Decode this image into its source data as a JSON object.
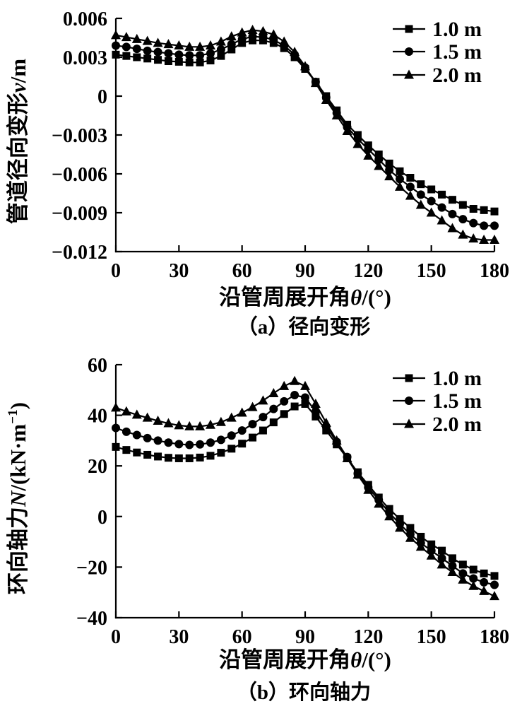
{
  "page": {
    "background": "#ffffff"
  },
  "colors": {
    "stroke": "#000000",
    "text": "#000000",
    "marker_fill": "#000000"
  },
  "chart_data": [
    {
      "type": "line",
      "panel": "a",
      "caption": "（a）径向变形",
      "xlabel_text": "沿管周展开角θ/(°)",
      "ylabel_text": "管道径向变形v/m",
      "xlabel_parts": [
        {
          "t": "沿管周展开角"
        },
        {
          "t": "θ",
          "i": true
        },
        {
          "t": "/(°)"
        }
      ],
      "ylabel_parts": [
        {
          "t": "管道径向变形"
        },
        {
          "t": "v",
          "i": true
        },
        {
          "t": "/m"
        }
      ],
      "xlim": [
        0,
        180
      ],
      "ylim": [
        -0.012,
        0.006
      ],
      "grid": false,
      "legend_position": "top-right",
      "xticks": [
        {
          "label": "0",
          "v": 0
        },
        {
          "label": "30",
          "v": 30
        },
        {
          "label": "60",
          "v": 60
        },
        {
          "label": "90",
          "v": 90
        },
        {
          "label": "120",
          "v": 120
        },
        {
          "label": "150",
          "v": 150
        },
        {
          "label": "180",
          "v": 180
        }
      ],
      "yticks": [
        {
          "label": "0.006",
          "v": 0.006
        },
        {
          "label": "0.003",
          "v": 0.003
        },
        {
          "label": "0",
          "v": 0
        },
        {
          "label": "−0.003",
          "v": -0.003
        },
        {
          "label": "−0.006",
          "v": -0.006
        },
        {
          "label": "−0.009",
          "v": -0.009
        },
        {
          "label": "−0.012",
          "v": -0.012
        }
      ],
      "x": [
        0,
        5,
        10,
        15,
        20,
        25,
        30,
        35,
        40,
        45,
        50,
        55,
        60,
        65,
        70,
        75,
        80,
        85,
        90,
        95,
        100,
        105,
        110,
        115,
        120,
        125,
        130,
        135,
        140,
        145,
        150,
        155,
        160,
        165,
        170,
        175,
        180
      ],
      "series": [
        {
          "name": "1.0 m",
          "marker": "square",
          "values": [
            0.0032,
            0.0031,
            0.003,
            0.0029,
            0.0028,
            0.0027,
            0.00265,
            0.0026,
            0.0026,
            0.00275,
            0.0031,
            0.0036,
            0.0041,
            0.0043,
            0.0043,
            0.0041,
            0.0037,
            0.003,
            0.0021,
            0.0011,
            0.0,
            -0.0011,
            -0.0022,
            -0.003,
            -0.0038,
            -0.0045,
            -0.0052,
            -0.0058,
            -0.0063,
            -0.0068,
            -0.0072,
            -0.0076,
            -0.008,
            -0.0084,
            -0.0087,
            -0.0088,
            -0.0089
          ]
        },
        {
          "name": "1.5 m",
          "marker": "circle",
          "values": [
            0.0039,
            0.0038,
            0.00365,
            0.0035,
            0.0034,
            0.0033,
            0.0032,
            0.00315,
            0.00315,
            0.0033,
            0.0036,
            0.004,
            0.0044,
            0.0046,
            0.00455,
            0.00435,
            0.0039,
            0.0032,
            0.0022,
            0.0011,
            -0.0001,
            -0.0013,
            -0.0024,
            -0.0033,
            -0.0041,
            -0.0049,
            -0.0057,
            -0.0064,
            -0.007,
            -0.0076,
            -0.0081,
            -0.0086,
            -0.0091,
            -0.0095,
            -0.0098,
            -0.01,
            -0.01
          ]
        },
        {
          "name": "2.0 m",
          "marker": "triangle",
          "values": [
            0.0047,
            0.00455,
            0.0044,
            0.00425,
            0.0041,
            0.004,
            0.0039,
            0.0038,
            0.0038,
            0.0039,
            0.0042,
            0.0046,
            0.0049,
            0.0051,
            0.005,
            0.00475,
            0.0042,
            0.0034,
            0.0023,
            0.001,
            -0.0003,
            -0.0015,
            -0.0027,
            -0.0037,
            -0.0046,
            -0.0054,
            -0.0062,
            -0.007,
            -0.0077,
            -0.0084,
            -0.009,
            -0.0096,
            -0.0102,
            -0.0107,
            -0.011,
            -0.0111,
            -0.0111
          ]
        }
      ]
    },
    {
      "type": "line",
      "panel": "b",
      "caption": "（b）环向轴力",
      "xlabel_text": "沿管周展开角θ/(°)",
      "ylabel_text": "环向轴力N/(kN·m⁻¹)",
      "xlabel_parts": [
        {
          "t": "沿管周展开角"
        },
        {
          "t": "θ",
          "i": true
        },
        {
          "t": "/(°)"
        }
      ],
      "ylabel_parts": [
        {
          "t": "环向轴力"
        },
        {
          "t": "N",
          "i": true
        },
        {
          "t": "/(kN·m"
        },
        {
          "t": "−1",
          "sup": true
        },
        {
          "t": ")"
        }
      ],
      "xlim": [
        0,
        180
      ],
      "ylim": [
        -40,
        60
      ],
      "grid": false,
      "legend_position": "top-right",
      "xticks": [
        {
          "label": "0",
          "v": 0
        },
        {
          "label": "30",
          "v": 30
        },
        {
          "label": "60",
          "v": 60
        },
        {
          "label": "90",
          "v": 90
        },
        {
          "label": "120",
          "v": 120
        },
        {
          "label": "150",
          "v": 150
        },
        {
          "label": "180",
          "v": 180
        }
      ],
      "yticks": [
        {
          "label": "60",
          "v": 60
        },
        {
          "label": "40",
          "v": 40
        },
        {
          "label": "20",
          "v": 20
        },
        {
          "label": "0",
          "v": 0
        },
        {
          "label": "−20",
          "v": -20
        },
        {
          "label": "−40",
          "v": -40
        }
      ],
      "x": [
        0,
        5,
        10,
        15,
        20,
        25,
        30,
        35,
        40,
        45,
        50,
        55,
        60,
        65,
        70,
        75,
        80,
        85,
        90,
        95,
        100,
        105,
        110,
        115,
        120,
        125,
        130,
        135,
        140,
        145,
        150,
        155,
        160,
        165,
        170,
        175,
        180
      ],
      "series": [
        {
          "name": "1.0 m",
          "marker": "square",
          "values": [
            27.5,
            26.3,
            25.3,
            24.4,
            23.7,
            23.2,
            23.0,
            23.0,
            23.3,
            24.0,
            25.2,
            26.8,
            28.8,
            31.2,
            34.0,
            37.2,
            40.5,
            43.5,
            44.5,
            39.5,
            34.0,
            28.5,
            23.0,
            17.5,
            12.5,
            7.5,
            3.0,
            -1.0,
            -4.5,
            -8.0,
            -11.0,
            -13.5,
            -16.5,
            -19.0,
            -21.0,
            -22.5,
            -23.5
          ]
        },
        {
          "name": "1.5 m",
          "marker": "circle",
          "values": [
            35.0,
            33.5,
            32.2,
            31.0,
            30.0,
            29.2,
            28.6,
            28.3,
            28.5,
            29.2,
            30.3,
            32.0,
            34.0,
            36.5,
            39.3,
            42.5,
            45.5,
            48.0,
            47.0,
            41.5,
            35.5,
            29.5,
            23.5,
            17.0,
            11.5,
            6.5,
            1.5,
            -3.0,
            -7.0,
            -10.5,
            -13.5,
            -16.5,
            -19.5,
            -22.5,
            -24.5,
            -26.0,
            -27.0
          ]
        },
        {
          "name": "2.0 m",
          "marker": "triangle",
          "values": [
            43.0,
            41.5,
            40.2,
            39.0,
            37.8,
            36.8,
            36.0,
            35.6,
            35.6,
            36.2,
            37.3,
            39.0,
            41.0,
            43.2,
            45.8,
            48.7,
            51.5,
            53.5,
            51.5,
            44.5,
            37.0,
            30.0,
            23.0,
            16.5,
            10.5,
            5.0,
            0.0,
            -4.5,
            -8.5,
            -12.0,
            -15.5,
            -19.0,
            -22.0,
            -25.0,
            -27.5,
            -29.5,
            -31.5
          ]
        }
      ]
    }
  ]
}
